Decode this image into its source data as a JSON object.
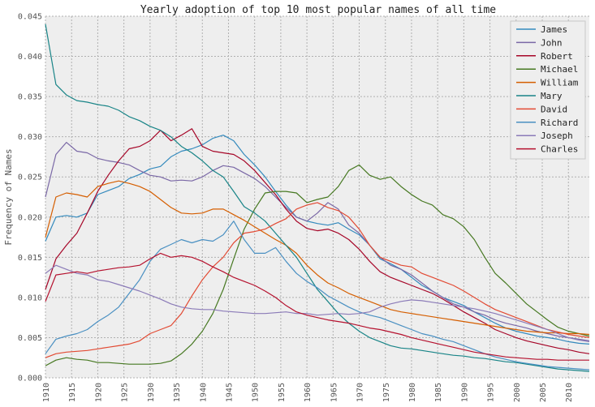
{
  "chart_data": {
    "type": "line",
    "title": "Yearly adoption of top 10 most popular names of all time",
    "xlabel": "",
    "ylabel": "Frequency of Names",
    "xlim": [
      1910,
      2014
    ],
    "ylim": [
      0,
      0.045
    ],
    "grid": true,
    "legend_position": "top-right",
    "x_ticks": [
      1910,
      1915,
      1920,
      1925,
      1930,
      1935,
      1940,
      1945,
      1950,
      1955,
      1960,
      1965,
      1970,
      1975,
      1980,
      1985,
      1990,
      1995,
      2000,
      2005,
      2010
    ],
    "y_ticks": [
      "0.000",
      "0.005",
      "0.010",
      "0.015",
      "0.020",
      "0.025",
      "0.030",
      "0.035",
      "0.040",
      "0.045"
    ],
    "x": [
      1910,
      1912,
      1914,
      1916,
      1918,
      1920,
      1922,
      1924,
      1926,
      1928,
      1930,
      1932,
      1934,
      1936,
      1938,
      1940,
      1942,
      1944,
      1946,
      1948,
      1950,
      1952,
      1954,
      1956,
      1958,
      1960,
      1962,
      1964,
      1966,
      1968,
      1970,
      1972,
      1974,
      1976,
      1978,
      1980,
      1982,
      1984,
      1986,
      1988,
      1990,
      1992,
      1994,
      1996,
      1998,
      2000,
      2002,
      2004,
      2006,
      2008,
      2010,
      2012,
      2014
    ],
    "series": [
      {
        "name": "James",
        "color": "#348abd",
        "values": [
          0.017,
          0.02,
          0.0202,
          0.02,
          0.0205,
          0.0228,
          0.0233,
          0.0238,
          0.0248,
          0.0253,
          0.026,
          0.0263,
          0.0275,
          0.0282,
          0.0285,
          0.029,
          0.0298,
          0.0302,
          0.0295,
          0.0278,
          0.0265,
          0.025,
          0.0232,
          0.0215,
          0.02,
          0.0195,
          0.0192,
          0.019,
          0.0193,
          0.0185,
          0.0178,
          0.0165,
          0.0148,
          0.0142,
          0.0135,
          0.0125,
          0.0115,
          0.0108,
          0.01,
          0.0095,
          0.009,
          0.0082,
          0.0075,
          0.0068,
          0.0062,
          0.0058,
          0.0055,
          0.0052,
          0.005,
          0.0048,
          0.0045,
          0.0043,
          0.0042
        ]
      },
      {
        "name": "John",
        "color": "#7a68a6",
        "values": [
          0.0225,
          0.0278,
          0.0293,
          0.0282,
          0.028,
          0.0273,
          0.027,
          0.0268,
          0.0265,
          0.0258,
          0.0252,
          0.025,
          0.0245,
          0.0246,
          0.0245,
          0.025,
          0.0258,
          0.0264,
          0.0262,
          0.0255,
          0.0248,
          0.0238,
          0.0225,
          0.0212,
          0.02,
          0.0195,
          0.0205,
          0.0218,
          0.021,
          0.019,
          0.018,
          0.0165,
          0.015,
          0.014,
          0.0135,
          0.0128,
          0.0118,
          0.0108,
          0.01,
          0.0092,
          0.0088,
          0.0082,
          0.0078,
          0.0072,
          0.0068,
          0.0065,
          0.0062,
          0.0058,
          0.0055,
          0.0052,
          0.005,
          0.0048,
          0.0046
        ]
      },
      {
        "name": "Robert",
        "color": "#a60628",
        "values": [
          0.011,
          0.0148,
          0.0165,
          0.018,
          0.0205,
          0.0232,
          0.0252,
          0.027,
          0.0285,
          0.0288,
          0.0295,
          0.0308,
          0.0295,
          0.0302,
          0.031,
          0.0288,
          0.0282,
          0.028,
          0.0278,
          0.027,
          0.0258,
          0.0243,
          0.0228,
          0.021,
          0.0195,
          0.0186,
          0.0183,
          0.0185,
          0.018,
          0.0172,
          0.016,
          0.0145,
          0.0132,
          0.0125,
          0.012,
          0.0115,
          0.011,
          0.0105,
          0.0098,
          0.009,
          0.0082,
          0.0075,
          0.0068,
          0.006,
          0.0055,
          0.005,
          0.0046,
          0.0043,
          0.004,
          0.0037,
          0.0035,
          0.0032,
          0.003
        ]
      },
      {
        "name": "Michael",
        "color": "#467821",
        "values": [
          0.0015,
          0.0022,
          0.0025,
          0.0023,
          0.0022,
          0.0019,
          0.0019,
          0.0018,
          0.0017,
          0.0017,
          0.0017,
          0.0018,
          0.0021,
          0.003,
          0.0042,
          0.0058,
          0.008,
          0.011,
          0.0148,
          0.0185,
          0.021,
          0.023,
          0.0232,
          0.0232,
          0.023,
          0.0218,
          0.0222,
          0.0225,
          0.0238,
          0.0258,
          0.0265,
          0.0252,
          0.0247,
          0.025,
          0.0238,
          0.0228,
          0.022,
          0.0215,
          0.0203,
          0.0198,
          0.0188,
          0.0172,
          0.015,
          0.013,
          0.0118,
          0.0105,
          0.0092,
          0.0082,
          0.0072,
          0.0063,
          0.0058,
          0.0055,
          0.0052
        ]
      },
      {
        "name": "William",
        "color": "#d55e00",
        "values": [
          0.0175,
          0.0225,
          0.023,
          0.0228,
          0.0225,
          0.0238,
          0.0242,
          0.0245,
          0.0242,
          0.0238,
          0.0232,
          0.0222,
          0.0212,
          0.0205,
          0.0204,
          0.0205,
          0.021,
          0.021,
          0.0203,
          0.0196,
          0.0188,
          0.018,
          0.0172,
          0.0165,
          0.0155,
          0.014,
          0.0128,
          0.0118,
          0.0112,
          0.0105,
          0.01,
          0.0095,
          0.009,
          0.0085,
          0.0082,
          0.008,
          0.0078,
          0.0076,
          0.0074,
          0.0072,
          0.007,
          0.0068,
          0.0066,
          0.0064,
          0.0062,
          0.006,
          0.0058,
          0.0057,
          0.0056,
          0.0056,
          0.0055,
          0.0055,
          0.0054
        ]
      },
      {
        "name": "Mary",
        "color": "#188487",
        "values": [
          0.044,
          0.0365,
          0.0352,
          0.0345,
          0.0343,
          0.034,
          0.0338,
          0.0333,
          0.0325,
          0.032,
          0.0313,
          0.0308,
          0.03,
          0.0288,
          0.028,
          0.027,
          0.0258,
          0.025,
          0.0232,
          0.0213,
          0.0205,
          0.0195,
          0.018,
          0.0165,
          0.015,
          0.013,
          0.011,
          0.0095,
          0.008,
          0.0068,
          0.0058,
          0.005,
          0.0045,
          0.004,
          0.0037,
          0.0036,
          0.0034,
          0.0032,
          0.003,
          0.0028,
          0.0027,
          0.0025,
          0.0024,
          0.0022,
          0.002,
          0.0019,
          0.0017,
          0.0015,
          0.0013,
          0.0011,
          0.001,
          0.0009,
          0.0008
        ]
      },
      {
        "name": "David",
        "color": "#e24a33",
        "values": [
          0.0025,
          0.003,
          0.0032,
          0.0033,
          0.0034,
          0.0036,
          0.0038,
          0.004,
          0.0042,
          0.0046,
          0.0055,
          0.006,
          0.0065,
          0.008,
          0.0102,
          0.0122,
          0.0138,
          0.015,
          0.0168,
          0.018,
          0.0182,
          0.0185,
          0.0192,
          0.0198,
          0.021,
          0.0215,
          0.0218,
          0.0212,
          0.0208,
          0.02,
          0.0185,
          0.0165,
          0.015,
          0.0145,
          0.014,
          0.0138,
          0.013,
          0.0125,
          0.012,
          0.0115,
          0.0108,
          0.01,
          0.0092,
          0.0085,
          0.008,
          0.0075,
          0.007,
          0.0065,
          0.006,
          0.0057,
          0.0054,
          0.0052,
          0.005
        ]
      },
      {
        "name": "Richard",
        "color": "#4a90c2",
        "values": [
          0.003,
          0.0048,
          0.0052,
          0.0055,
          0.006,
          0.007,
          0.0078,
          0.0088,
          0.0105,
          0.0122,
          0.0145,
          0.016,
          0.0166,
          0.0172,
          0.0168,
          0.0172,
          0.017,
          0.0178,
          0.0195,
          0.0172,
          0.0155,
          0.0155,
          0.0162,
          0.0145,
          0.013,
          0.012,
          0.0112,
          0.0102,
          0.0095,
          0.0088,
          0.0082,
          0.0078,
          0.0075,
          0.007,
          0.0065,
          0.006,
          0.0055,
          0.0052,
          0.0048,
          0.0045,
          0.004,
          0.0035,
          0.003,
          0.0026,
          0.0023,
          0.002,
          0.0018,
          0.0016,
          0.0014,
          0.0013,
          0.0012,
          0.0011,
          0.001
        ]
      },
      {
        "name": "Joseph",
        "color": "#8b7bb8",
        "values": [
          0.013,
          0.014,
          0.0135,
          0.013,
          0.0128,
          0.0122,
          0.012,
          0.0116,
          0.0112,
          0.0108,
          0.0103,
          0.0098,
          0.0092,
          0.0088,
          0.0086,
          0.0085,
          0.0085,
          0.0083,
          0.0082,
          0.0081,
          0.008,
          0.008,
          0.0081,
          0.0082,
          0.008,
          0.008,
          0.0078,
          0.0079,
          0.008,
          0.0079,
          0.008,
          0.0082,
          0.0088,
          0.0092,
          0.0095,
          0.0097,
          0.0096,
          0.0094,
          0.0092,
          0.009,
          0.0088,
          0.0086,
          0.0083,
          0.008,
          0.0076,
          0.0072,
          0.0068,
          0.0064,
          0.006,
          0.0055,
          0.005,
          0.0047,
          0.0045
        ]
      },
      {
        "name": "Charles",
        "color": "#b5112e",
        "values": [
          0.0095,
          0.0128,
          0.013,
          0.0132,
          0.013,
          0.0133,
          0.0135,
          0.0137,
          0.0138,
          0.014,
          0.0148,
          0.0155,
          0.015,
          0.0152,
          0.015,
          0.0145,
          0.0138,
          0.0132,
          0.0125,
          0.012,
          0.0115,
          0.0108,
          0.01,
          0.009,
          0.0082,
          0.0078,
          0.0075,
          0.0072,
          0.007,
          0.0068,
          0.0065,
          0.0062,
          0.006,
          0.0057,
          0.0054,
          0.005,
          0.0047,
          0.0044,
          0.0041,
          0.0038,
          0.0035,
          0.0032,
          0.003,
          0.0028,
          0.0026,
          0.0025,
          0.0024,
          0.0023,
          0.0023,
          0.0022,
          0.0022,
          0.0022,
          0.0022
        ]
      }
    ]
  }
}
